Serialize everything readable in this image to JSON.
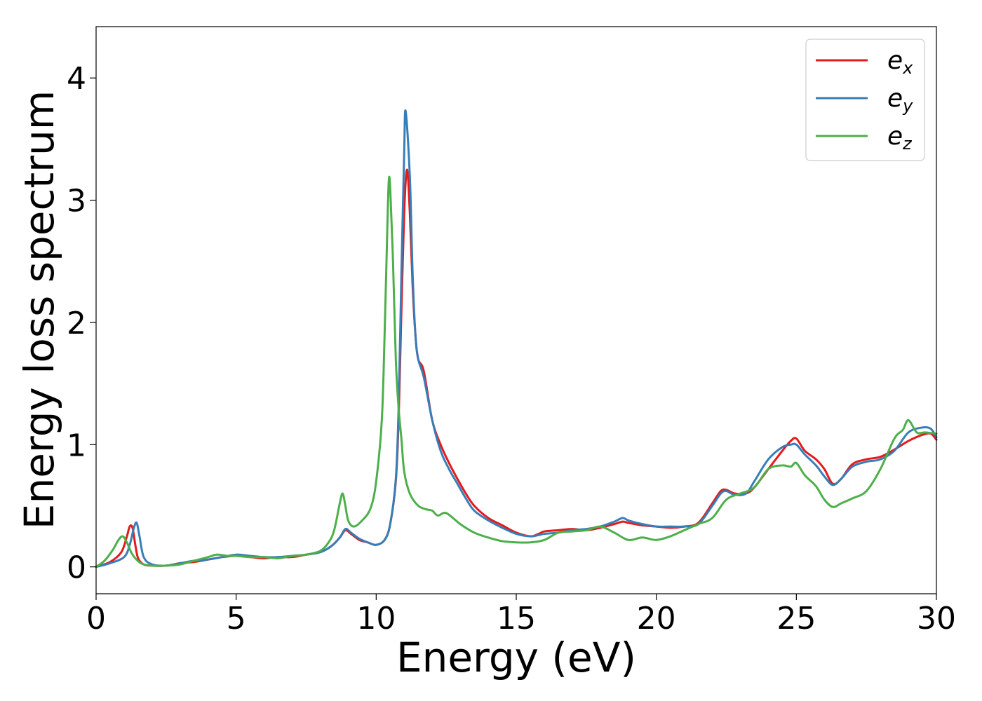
{
  "chart_data": {
    "type": "line",
    "title": "",
    "xlabel": "Energy (eV)",
    "ylabel": "Energy loss spectrum",
    "xlim": [
      0,
      30
    ],
    "ylim": [
      -0.22,
      4.42
    ],
    "x_ticks": [
      0,
      5,
      10,
      15,
      20,
      25,
      30
    ],
    "y_ticks": [
      0,
      1,
      2,
      3,
      4
    ],
    "grid": false,
    "legend": "top-right",
    "series": [
      {
        "name": "e_x",
        "label_base": "e",
        "label_sub": "x",
        "color": "#e41a1c",
        "x": [
          0,
          0.5,
          0.9,
          1.1,
          1.2,
          1.3,
          1.4,
          1.5,
          1.7,
          2.0,
          2.5,
          3.0,
          3.5,
          4.0,
          4.5,
          5.0,
          5.5,
          6.0,
          6.5,
          7.0,
          7.5,
          8.0,
          8.4,
          8.7,
          8.9,
          9.1,
          9.4,
          9.7,
          10.0,
          10.3,
          10.5,
          10.7,
          10.8,
          10.9,
          11.0,
          11.1,
          11.2,
          11.3,
          11.4,
          11.5,
          11.7,
          12.0,
          12.3,
          12.6,
          12.9,
          13.2,
          13.5,
          14.0,
          14.5,
          15.0,
          15.5,
          15.8,
          16.0,
          16.5,
          17.0,
          17.5,
          18.0,
          18.5,
          18.8,
          19.0,
          19.5,
          20.0,
          20.5,
          21.0,
          21.5,
          22.0,
          22.3,
          22.5,
          22.8,
          23.2,
          23.5,
          24.0,
          24.5,
          24.8,
          25.0,
          25.3,
          25.7,
          26.0,
          26.3,
          26.6,
          27.0,
          27.5,
          28.0,
          28.5,
          29.0,
          29.5,
          29.8,
          30.0
        ],
        "y": [
          0,
          0.04,
          0.12,
          0.25,
          0.33,
          0.32,
          0.18,
          0.07,
          0.02,
          0.01,
          0.01,
          0.03,
          0.04,
          0.06,
          0.08,
          0.09,
          0.08,
          0.07,
          0.08,
          0.08,
          0.1,
          0.12,
          0.17,
          0.24,
          0.3,
          0.27,
          0.22,
          0.2,
          0.18,
          0.22,
          0.35,
          0.7,
          1.2,
          2.1,
          2.9,
          3.25,
          2.9,
          2.3,
          1.9,
          1.7,
          1.6,
          1.2,
          1.0,
          0.85,
          0.72,
          0.6,
          0.5,
          0.4,
          0.34,
          0.28,
          0.25,
          0.27,
          0.29,
          0.3,
          0.31,
          0.3,
          0.32,
          0.35,
          0.37,
          0.36,
          0.34,
          0.33,
          0.32,
          0.33,
          0.36,
          0.52,
          0.62,
          0.63,
          0.6,
          0.6,
          0.65,
          0.8,
          0.95,
          1.03,
          1.05,
          0.95,
          0.88,
          0.8,
          0.68,
          0.72,
          0.84,
          0.88,
          0.9,
          0.96,
          1.03,
          1.08,
          1.09,
          1.04
        ]
      },
      {
        "name": "e_y",
        "label_base": "e",
        "label_sub": "y",
        "color": "#377eb8",
        "x": [
          0,
          0.5,
          1.0,
          1.2,
          1.35,
          1.45,
          1.55,
          1.7,
          2.0,
          2.5,
          3.0,
          3.5,
          4.0,
          4.5,
          5.0,
          5.5,
          6.0,
          6.5,
          7.0,
          7.5,
          8.0,
          8.4,
          8.7,
          8.9,
          9.1,
          9.4,
          9.7,
          10.0,
          10.3,
          10.5,
          10.7,
          10.8,
          10.9,
          11.0,
          11.05,
          11.2,
          11.3,
          11.4,
          11.5,
          11.7,
          12.0,
          12.3,
          12.6,
          12.9,
          13.2,
          13.5,
          14.0,
          14.5,
          15.0,
          15.5,
          15.8,
          16.0,
          16.5,
          17.0,
          17.5,
          18.0,
          18.5,
          18.8,
          19.0,
          19.5,
          20.0,
          20.5,
          21.0,
          21.5,
          22.0,
          22.3,
          22.5,
          22.8,
          23.2,
          23.5,
          24.0,
          24.5,
          24.8,
          25.0,
          25.3,
          25.7,
          26.0,
          26.3,
          26.6,
          27.0,
          27.5,
          28.0,
          28.5,
          29.0,
          29.5,
          29.8,
          30.0
        ],
        "y": [
          0,
          0.03,
          0.08,
          0.18,
          0.32,
          0.36,
          0.25,
          0.08,
          0.02,
          0.01,
          0.03,
          0.05,
          0.06,
          0.08,
          0.1,
          0.09,
          0.08,
          0.08,
          0.09,
          0.1,
          0.12,
          0.17,
          0.24,
          0.31,
          0.28,
          0.23,
          0.2,
          0.18,
          0.22,
          0.35,
          0.72,
          1.3,
          2.4,
          3.4,
          3.73,
          3.2,
          2.4,
          1.9,
          1.7,
          1.55,
          1.2,
          0.95,
          0.8,
          0.68,
          0.56,
          0.46,
          0.38,
          0.32,
          0.27,
          0.25,
          0.26,
          0.27,
          0.28,
          0.3,
          0.31,
          0.33,
          0.37,
          0.4,
          0.38,
          0.35,
          0.33,
          0.33,
          0.33,
          0.35,
          0.5,
          0.6,
          0.62,
          0.59,
          0.6,
          0.7,
          0.88,
          0.98,
          1.0,
          1.0,
          0.92,
          0.83,
          0.74,
          0.67,
          0.72,
          0.82,
          0.86,
          0.88,
          0.95,
          1.1,
          1.14,
          1.13,
          1.06
        ]
      },
      {
        "name": "e_z",
        "label_base": "e",
        "label_sub": "z",
        "color": "#4daf4a",
        "x": [
          0,
          0.3,
          0.6,
          0.8,
          0.95,
          1.1,
          1.3,
          1.6,
          2.0,
          2.5,
          3.0,
          3.5,
          4.0,
          4.3,
          4.7,
          5.0,
          5.5,
          6.0,
          6.5,
          7.0,
          7.5,
          8.0,
          8.3,
          8.5,
          8.7,
          8.8,
          8.9,
          9.0,
          9.2,
          9.5,
          9.8,
          10.0,
          10.2,
          10.3,
          10.4,
          10.45,
          10.5,
          10.6,
          10.7,
          10.8,
          10.9,
          11.0,
          11.2,
          11.5,
          11.8,
          12.0,
          12.2,
          12.5,
          13.0,
          13.5,
          14.0,
          14.5,
          15.0,
          15.5,
          16.0,
          16.5,
          17.0,
          17.5,
          18.0,
          18.5,
          19.0,
          19.5,
          20.0,
          20.5,
          21.0,
          21.5,
          22.0,
          22.5,
          23.0,
          23.5,
          24.0,
          24.5,
          24.8,
          25.0,
          25.3,
          25.7,
          26.0,
          26.3,
          26.6,
          27.0,
          27.5,
          28.0,
          28.5,
          28.8,
          29.0,
          29.3,
          29.6,
          30.0
        ],
        "y": [
          0,
          0.05,
          0.14,
          0.22,
          0.25,
          0.2,
          0.1,
          0.03,
          0.01,
          0.01,
          0.02,
          0.05,
          0.08,
          0.1,
          0.09,
          0.09,
          0.08,
          0.08,
          0.07,
          0.09,
          0.1,
          0.13,
          0.2,
          0.3,
          0.52,
          0.6,
          0.5,
          0.38,
          0.33,
          0.38,
          0.48,
          0.7,
          1.2,
          1.9,
          2.8,
          3.16,
          3.1,
          2.5,
          1.7,
          1.3,
          1.05,
          0.78,
          0.6,
          0.5,
          0.47,
          0.46,
          0.42,
          0.44,
          0.35,
          0.28,
          0.24,
          0.21,
          0.2,
          0.2,
          0.22,
          0.28,
          0.29,
          0.3,
          0.33,
          0.28,
          0.22,
          0.24,
          0.22,
          0.25,
          0.3,
          0.35,
          0.4,
          0.55,
          0.6,
          0.65,
          0.8,
          0.83,
          0.82,
          0.85,
          0.75,
          0.66,
          0.55,
          0.49,
          0.52,
          0.56,
          0.62,
          0.8,
          1.05,
          1.12,
          1.2,
          1.1,
          1.1,
          1.09
        ]
      }
    ]
  }
}
